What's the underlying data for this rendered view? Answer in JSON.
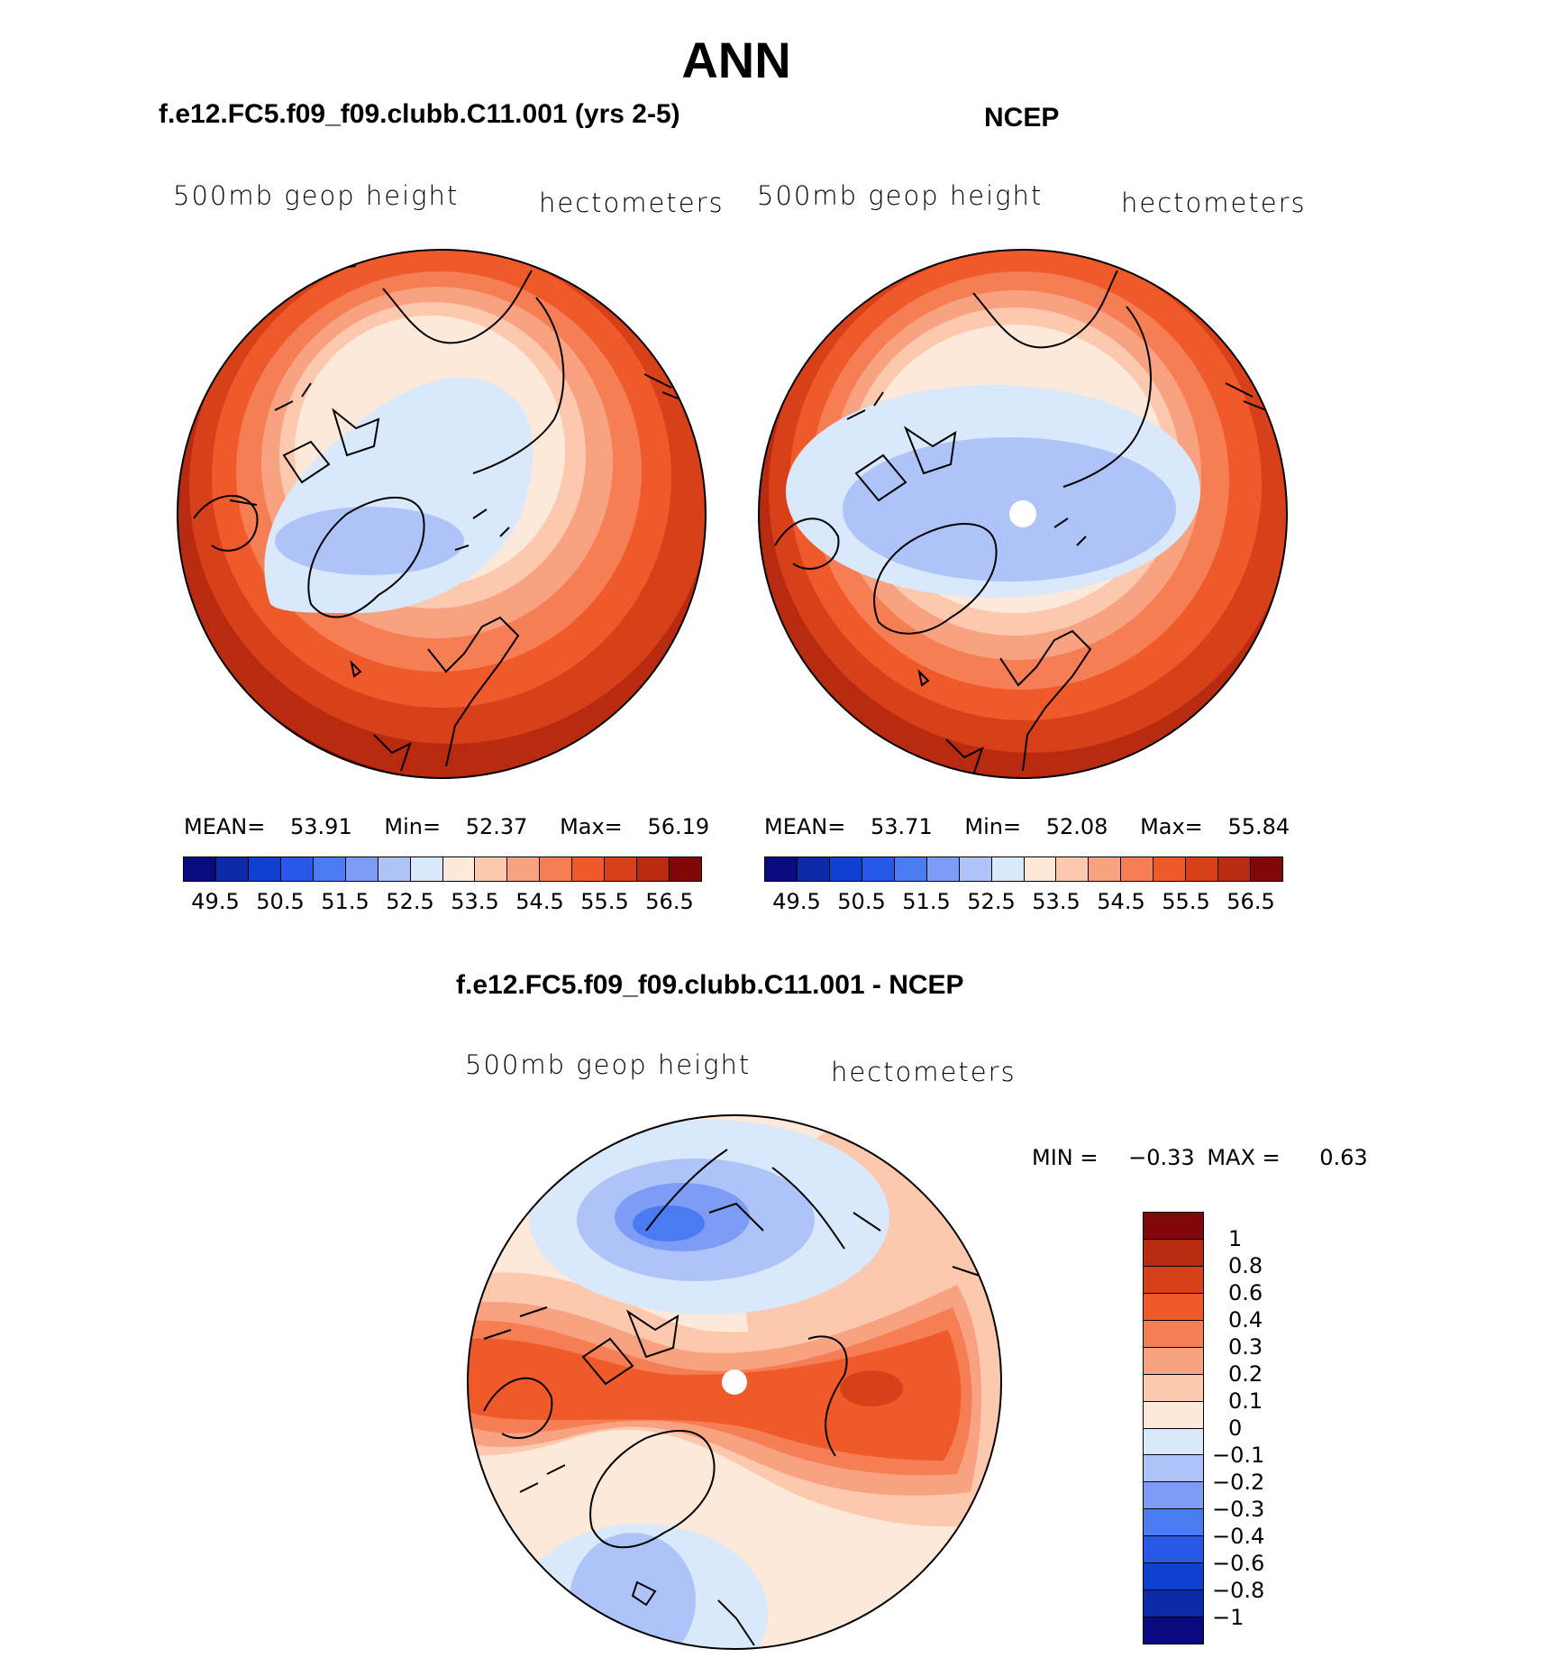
{
  "main_title": "ANN",
  "panels": {
    "model": {
      "title": "f.e12.FC5.f09_f09.clubb.C11.001 (yrs 2-5)",
      "left_label": "500mb geop height",
      "right_label": "hectometers",
      "mean_label": "MEAN=",
      "mean": "53.91",
      "min_label": "Min=",
      "min": "52.37",
      "max_label": "Max=",
      "max": "56.19"
    },
    "obs": {
      "title": "NCEP",
      "left_label": "500mb geop height",
      "right_label": "hectometers",
      "mean_label": "MEAN=",
      "mean": "53.71",
      "min_label": "Min=",
      "min": "52.08",
      "max_label": "Max=",
      "max": "55.84"
    },
    "diff": {
      "title": "f.e12.FC5.f09_f09.clubb.C11.001 - NCEP",
      "left_label": "500mb geop height",
      "right_label": "hectometers",
      "min_label": "MIN =",
      "min": "−0.33",
      "max_label": "MAX =",
      "max": "0.63"
    }
  },
  "colorbar_abs": {
    "colors": [
      "#0a0a80",
      "#0d2aa8",
      "#1040d0",
      "#2858e8",
      "#4a7bf0",
      "#7c9cf5",
      "#aec4f8",
      "#d9e8fb",
      "#fde9d9",
      "#fcc9ae",
      "#f8a282",
      "#f57e55",
      "#f05a2a",
      "#d8401a",
      "#b82b10",
      "#800808"
    ],
    "tick_labels": [
      "49.5",
      "50.5",
      "51.5",
      "52.5",
      "53.5",
      "54.5",
      "55.5",
      "56.5"
    ]
  },
  "colorbar_obs": {
    "colors": [
      "#0a0a80",
      "#0d2aa8",
      "#1040d0",
      "#2858e8",
      "#4a7bf0",
      "#7c9cf5",
      "#aec4f8",
      "#d9e8fb",
      "#fde9d9",
      "#fcc9ae",
      "#f8a282",
      "#f57e55",
      "#f05a2a",
      "#d8401a",
      "#b82b10",
      "#800808"
    ],
    "tick_labels": [
      "49.5",
      "50.5",
      "51.5",
      "52.5",
      "53.5",
      "54.5",
      "55.5",
      "56.5"
    ]
  },
  "colorbar_diff": {
    "colors_top_to_bottom": [
      "#800808",
      "#b82b10",
      "#d8401a",
      "#f05a2a",
      "#f57e55",
      "#f8a282",
      "#fcc9ae",
      "#fde9d9",
      "#d9e8fb",
      "#aec4f8",
      "#7c9cf5",
      "#4a7bf0",
      "#2858e8",
      "#1040d0",
      "#0d2aa8",
      "#0a0a80"
    ],
    "labels": [
      "1",
      "0.8",
      "0.6",
      "0.4",
      "0.3",
      "0.2",
      "0.1",
      "0",
      "−0.1",
      "−0.2",
      "−0.3",
      "−0.4",
      "−0.6",
      "−0.8",
      "−1"
    ]
  }
}
